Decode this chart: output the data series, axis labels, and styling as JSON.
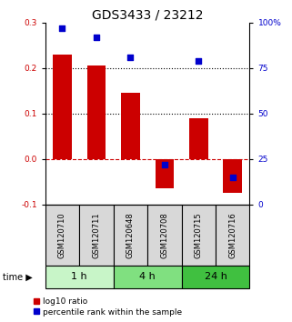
{
  "title": "GDS3433 / 23212",
  "samples": [
    "GSM120710",
    "GSM120711",
    "GSM120648",
    "GSM120708",
    "GSM120715",
    "GSM120716"
  ],
  "log10_ratio": [
    0.23,
    0.205,
    0.145,
    -0.065,
    0.09,
    -0.075
  ],
  "percentile_rank": [
    97,
    92,
    81,
    22,
    79,
    15
  ],
  "groups": [
    {
      "label": "1 h",
      "span": [
        0,
        2
      ],
      "color": "#c8f5c8"
    },
    {
      "label": "4 h",
      "span": [
        2,
        4
      ],
      "color": "#80e080"
    },
    {
      "label": "24 h",
      "span": [
        4,
        6
      ],
      "color": "#40c040"
    }
  ],
  "bar_color": "#cc0000",
  "dot_color": "#0000cc",
  "left_ylim": [
    -0.1,
    0.3
  ],
  "right_ylim": [
    0,
    100
  ],
  "left_yticks": [
    -0.1,
    0.0,
    0.1,
    0.2,
    0.3
  ],
  "right_yticks": [
    0,
    25,
    50,
    75,
    100
  ],
  "right_yticklabels": [
    "0",
    "25",
    "50",
    "75",
    "100%"
  ],
  "dotted_lines": [
    0.1,
    0.2
  ],
  "zero_line_color": "#cc0000",
  "bg_color": "#ffffff",
  "bar_width": 0.55,
  "dot_size": 18,
  "sample_box_color": "#d8d8d8",
  "title_fontsize": 10,
  "tick_fontsize": 6.5,
  "label_fontsize": 7,
  "legend_fontsize": 6.5,
  "left_tick_color": "#cc0000",
  "right_tick_color": "#0000cc"
}
